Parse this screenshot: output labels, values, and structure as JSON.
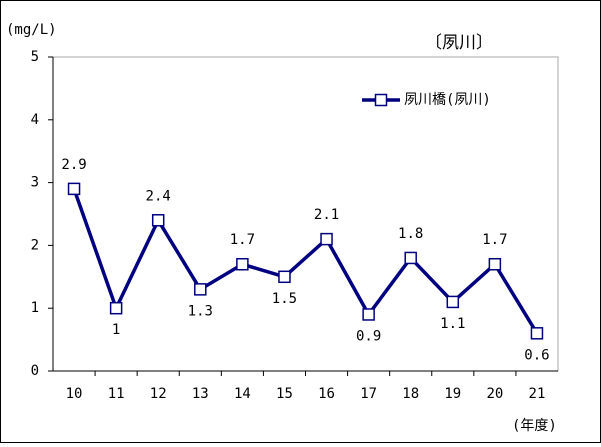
{
  "chart_data": {
    "type": "line",
    "title": "〔夙川〕",
    "y_label": "(mg/L)",
    "x_label": "(年度)",
    "categories": [
      "10",
      "11",
      "12",
      "13",
      "14",
      "15",
      "16",
      "17",
      "18",
      "19",
      "20",
      "21"
    ],
    "series": [
      {
        "name": "夙川橋(夙川)",
        "color": "#000080",
        "values": [
          2.9,
          1,
          2.4,
          1.3,
          1.7,
          1.5,
          2.1,
          0.9,
          1.8,
          1.1,
          1.7,
          0.6
        ]
      }
    ],
    "ylim": [
      0,
      5
    ],
    "yticks": [
      0,
      1,
      2,
      3,
      4,
      5
    ],
    "grid": false,
    "legend": "top-right"
  }
}
